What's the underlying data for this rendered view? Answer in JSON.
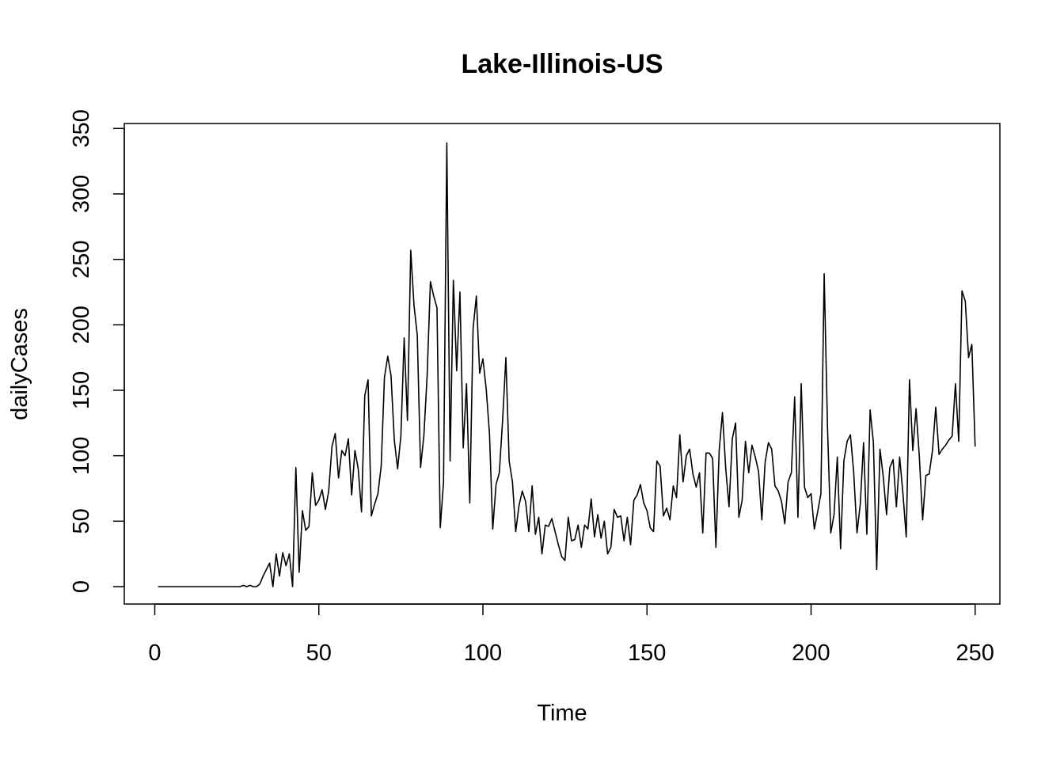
{
  "chart_data": {
    "type": "line",
    "title": "Lake-Illinois-US",
    "xlabel": "Time",
    "ylabel": "dailyCases",
    "xlim": [
      1,
      248
    ],
    "ylim": [
      0,
      339
    ],
    "xticks": [
      0,
      50,
      100,
      150,
      200,
      250
    ],
    "yticks": [
      0,
      50,
      100,
      150,
      200,
      250,
      300,
      350
    ],
    "line_color": "#000000",
    "grid": false,
    "series": [
      {
        "x_start": 1,
        "values": [
          0,
          0,
          0,
          0,
          0,
          0,
          0,
          0,
          0,
          0,
          0,
          0,
          0,
          0,
          0,
          0,
          0,
          0,
          0,
          0,
          0,
          0,
          0,
          0,
          0,
          0,
          1,
          0,
          1,
          0,
          0,
          2,
          8,
          13,
          18,
          0,
          25,
          8,
          26,
          16,
          25,
          0,
          91,
          11,
          58,
          43,
          46,
          87,
          62,
          66,
          74,
          59,
          73,
          107,
          117,
          83,
          104,
          100,
          113,
          70,
          104,
          90,
          57,
          146,
          158,
          54,
          63,
          71,
          92,
          160,
          176,
          161,
          112,
          90,
          115,
          190,
          127,
          257,
          215,
          192,
          91,
          115,
          161,
          233,
          222,
          213,
          45,
          80,
          339,
          96,
          234,
          165,
          225,
          106,
          155,
          64,
          197,
          222,
          163,
          174,
          151,
          117,
          44,
          78,
          87,
          127,
          175,
          96,
          80,
          42,
          62,
          73,
          65,
          42,
          77,
          40,
          53,
          25,
          47,
          46,
          52,
          42,
          32,
          23,
          20,
          53,
          35,
          36,
          47,
          30,
          47,
          44,
          67,
          38,
          55,
          37,
          50,
          25,
          30,
          59,
          53,
          54,
          35,
          53,
          32,
          66,
          70,
          78,
          64,
          58,
          45,
          42,
          96,
          92,
          54,
          60,
          51,
          77,
          68,
          116,
          80,
          100,
          105,
          86,
          76,
          87,
          41,
          102,
          102,
          98,
          30,
          104,
          133,
          90,
          61,
          113,
          125,
          53,
          66,
          111,
          87,
          108,
          99,
          88,
          51,
          95,
          110,
          105,
          77,
          73,
          65,
          48,
          80,
          87,
          145,
          53,
          155,
          76,
          68,
          71,
          44,
          57,
          71,
          239,
          123,
          41,
          55,
          99,
          29,
          96,
          111,
          116,
          87,
          41,
          63,
          110,
          40,
          135,
          110,
          13,
          105,
          84,
          55,
          91,
          97,
          61,
          99,
          71,
          38,
          158,
          104,
          136,
          99,
          51,
          85,
          86,
          104,
          137,
          101,
          105,
          108,
          112,
          115,
          155,
          111,
          226,
          218,
          175,
          185,
          107
        ]
      }
    ]
  }
}
